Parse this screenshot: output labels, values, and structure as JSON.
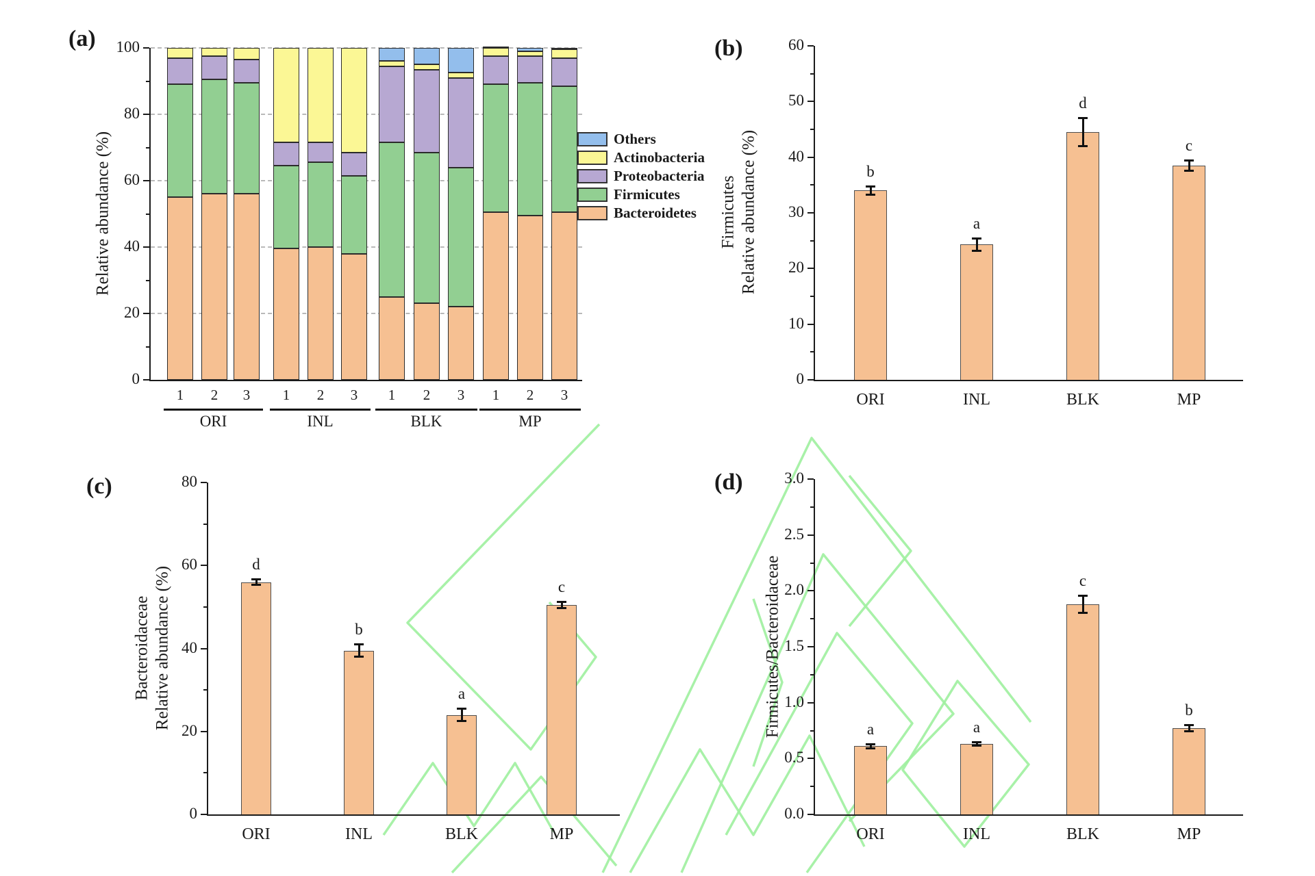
{
  "figure_title": "",
  "colors": {
    "bar_fill": "#f6c092",
    "bar_border": "#4d4d4d",
    "axis": "#1a1a1a",
    "watermark": "#9ff09f",
    "others": "#93beec",
    "actinobacteria": "#fbf795",
    "proteobacteria": "#b7a8d2",
    "firmicutes": "#92cf92",
    "bacteroidetes": "#f6c092"
  },
  "legend": [
    {
      "name": "Others",
      "color": "#93beec"
    },
    {
      "name": "Actinobacteria",
      "color": "#fbf795"
    },
    {
      "name": "Proteobacteria",
      "color": "#b7a8d2"
    },
    {
      "name": "Firmicutes",
      "color": "#92cf92"
    },
    {
      "name": "Bacteroidetes",
      "color": "#f6c092"
    }
  ],
  "chart_data": [
    {
      "id": "a",
      "panel_label": "(a)",
      "type": "bar",
      "stacked": true,
      "ylabel": "Relative abundance (%)",
      "ylim": [
        0,
        100
      ],
      "ytick_labels": [
        "0",
        "20",
        "40",
        "60",
        "80",
        "100"
      ],
      "grid": "dashed horizontal at 20/40/60/80/100",
      "legend_position": "right",
      "groups": [
        "ORI",
        "INL",
        "BLK",
        "MP"
      ],
      "replicates": [
        "1",
        "2",
        "3"
      ],
      "series": [
        {
          "name": "Bacteroidetes",
          "color": "#f6c092",
          "values": [
            55,
            56,
            56,
            39.5,
            40,
            38,
            25,
            23,
            22,
            50.5,
            49.5,
            50.5
          ]
        },
        {
          "name": "Firmicutes",
          "color": "#92cf92",
          "values": [
            34,
            34.5,
            33.5,
            25,
            25.5,
            23.5,
            46.5,
            45.5,
            42,
            38.5,
            40,
            38
          ]
        },
        {
          "name": "Proteobacteria",
          "color": "#b7a8d2",
          "values": [
            8,
            7,
            7,
            7,
            6,
            7,
            23,
            25,
            27,
            8.5,
            8,
            8.5
          ]
        },
        {
          "name": "Actinobacteria",
          "color": "#fbf795",
          "values": [
            3,
            2.5,
            3.5,
            28.5,
            28.5,
            31.5,
            1.5,
            1.5,
            1.5,
            2.5,
            1.5,
            2.5
          ]
        },
        {
          "name": "Others",
          "color": "#93beec",
          "values": [
            0,
            0,
            0,
            0,
            0,
            0,
            4,
            5,
            7.5,
            0.5,
            1,
            0.5
          ]
        }
      ]
    },
    {
      "id": "b",
      "panel_label": "(b)",
      "type": "bar",
      "ylabel_line1": "Firmicutes",
      "ylabel_line2": "Relative abundance (%)",
      "ylim": [
        0,
        60
      ],
      "ytick_labels": [
        "0",
        "10",
        "20",
        "30",
        "40",
        "50",
        "60"
      ],
      "categories": [
        "ORI",
        "INL",
        "BLK",
        "MP"
      ],
      "values": [
        34,
        24.3,
        44.5,
        38.5
      ],
      "errors": [
        0.8,
        1.2,
        2.6,
        1.0
      ],
      "letters": [
        "b",
        "a",
        "d",
        "c"
      ]
    },
    {
      "id": "c",
      "panel_label": "(c)",
      "type": "bar",
      "ylabel_line1": "Bacteroidaceae",
      "ylabel_line2": "Relative abundance (%)",
      "ylim": [
        0,
        80
      ],
      "ytick_labels": [
        "0",
        "20",
        "40",
        "60",
        "80"
      ],
      "categories": [
        "ORI",
        "INL",
        "BLK",
        "MP"
      ],
      "values": [
        56,
        39.5,
        24,
        50.5
      ],
      "errors": [
        0.8,
        1.5,
        1.5,
        0.8
      ],
      "letters": [
        "d",
        "b",
        "a",
        "c"
      ]
    },
    {
      "id": "d",
      "panel_label": "(d)",
      "type": "bar",
      "ylabel": "Firmicutes/Bacteroidaceae",
      "ylim": [
        0,
        3.0
      ],
      "ytick_labels": [
        "0.0",
        "0.5",
        "1.0",
        "1.5",
        "2.0",
        "2.5",
        "3.0"
      ],
      "categories": [
        "ORI",
        "INL",
        "BLK",
        "MP"
      ],
      "values": [
        0.61,
        0.63,
        1.88,
        0.77
      ],
      "errors": [
        0.02,
        0.02,
        0.08,
        0.03
      ],
      "letters": [
        "a",
        "a",
        "c",
        "b"
      ]
    }
  ]
}
